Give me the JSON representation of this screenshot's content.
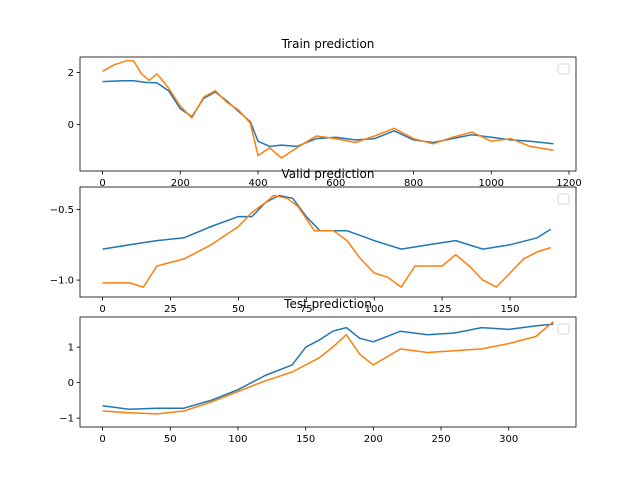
{
  "colors": {
    "actual": "#1f77b4",
    "predicted": "#ff7f0e"
  },
  "chart_data": [
    {
      "type": "line",
      "title": "Train prediction",
      "xlim": [
        -58,
        1218
      ],
      "ylim": [
        -1.8,
        2.6
      ],
      "xticks": [
        0,
        200,
        400,
        600,
        800,
        1000,
        1200
      ],
      "yticks": [
        -2,
        0,
        2
      ],
      "ytick_labels": [
        "",
        "0",
        "2"
      ],
      "grid": false,
      "legend": "top-right (empty)",
      "series": [
        {
          "color": "#1f77b4",
          "x": [
            0,
            50,
            80,
            110,
            140,
            170,
            200,
            230,
            260,
            290,
            320,
            350,
            380,
            400,
            430,
            460,
            500,
            550,
            600,
            650,
            700,
            750,
            800,
            850,
            900,
            950,
            1000,
            1050,
            1100,
            1160
          ],
          "y": [
            1.65,
            1.68,
            1.68,
            1.62,
            1.6,
            1.3,
            0.6,
            0.3,
            1.0,
            1.25,
            0.9,
            0.5,
            0.1,
            -0.65,
            -0.85,
            -0.8,
            -0.85,
            -0.55,
            -0.5,
            -0.6,
            -0.55,
            -0.25,
            -0.6,
            -0.7,
            -0.55,
            -0.4,
            -0.5,
            -0.6,
            -0.65,
            -0.75
          ]
        },
        {
          "color": "#ff7f0e",
          "x": [
            0,
            30,
            60,
            80,
            100,
            120,
            140,
            170,
            200,
            230,
            260,
            290,
            320,
            350,
            380,
            400,
            430,
            460,
            500,
            550,
            600,
            650,
            700,
            750,
            800,
            850,
            900,
            950,
            1000,
            1050,
            1100,
            1160
          ],
          "y": [
            2.05,
            2.3,
            2.45,
            2.45,
            1.95,
            1.7,
            1.95,
            1.4,
            0.7,
            0.25,
            1.05,
            1.3,
            0.85,
            0.55,
            0.05,
            -1.2,
            -0.9,
            -1.3,
            -0.9,
            -0.45,
            -0.55,
            -0.7,
            -0.45,
            -0.15,
            -0.55,
            -0.75,
            -0.5,
            -0.3,
            -0.65,
            -0.55,
            -0.85,
            -1.0
          ]
        }
      ]
    },
    {
      "type": "line",
      "title": "Valid prediction",
      "xlim": [
        -8.3,
        174.3
      ],
      "ylim": [
        -1.12,
        -0.34
      ],
      "xticks": [
        0,
        25,
        50,
        75,
        100,
        125,
        150
      ],
      "yticks": [
        -1.0,
        -0.5
      ],
      "ytick_labels": [
        "−1.0",
        "−0.5"
      ],
      "grid": false,
      "legend": "top-right (empty)",
      "series": [
        {
          "color": "#1f77b4",
          "x": [
            0,
            10,
            20,
            30,
            40,
            50,
            55,
            60,
            65,
            70,
            75,
            80,
            90,
            100,
            110,
            120,
            130,
            140,
            150,
            160,
            165
          ],
          "y": [
            -0.78,
            -0.75,
            -0.72,
            -0.7,
            -0.62,
            -0.55,
            -0.55,
            -0.45,
            -0.4,
            -0.42,
            -0.55,
            -0.65,
            -0.65,
            -0.72,
            -0.78,
            -0.75,
            -0.72,
            -0.78,
            -0.75,
            -0.7,
            -0.64
          ]
        },
        {
          "color": "#ff7f0e",
          "x": [
            0,
            10,
            15,
            20,
            30,
            40,
            50,
            55,
            60,
            63,
            68,
            72,
            78,
            85,
            90,
            95,
            100,
            105,
            110,
            115,
            120,
            125,
            130,
            135,
            140,
            145,
            150,
            155,
            160,
            165
          ],
          "y": [
            -1.02,
            -1.02,
            -1.05,
            -0.9,
            -0.85,
            -0.75,
            -0.62,
            -0.52,
            -0.45,
            -0.4,
            -0.42,
            -0.48,
            -0.65,
            -0.65,
            -0.72,
            -0.85,
            -0.95,
            -0.98,
            -1.05,
            -0.9,
            -0.9,
            -0.9,
            -0.82,
            -0.9,
            -1.0,
            -1.05,
            -0.95,
            -0.85,
            -0.8,
            -0.77
          ]
        }
      ]
    },
    {
      "type": "line",
      "title": "Test prediction",
      "xlim": [
        -16.7,
        349.7
      ],
      "ylim": [
        -1.25,
        1.85
      ],
      "xticks": [
        0,
        50,
        100,
        150,
        200,
        250,
        300
      ],
      "yticks": [
        -1,
        0,
        1
      ],
      "ytick_labels": [
        "−1",
        "0",
        "1"
      ],
      "grid": false,
      "legend": "top-right (empty)",
      "series": [
        {
          "color": "#1f77b4",
          "x": [
            0,
            20,
            40,
            60,
            80,
            100,
            120,
            140,
            150,
            160,
            170,
            180,
            190,
            200,
            220,
            240,
            260,
            280,
            300,
            320,
            333
          ],
          "y": [
            -0.65,
            -0.75,
            -0.72,
            -0.72,
            -0.5,
            -0.2,
            0.2,
            0.5,
            1.0,
            1.2,
            1.45,
            1.55,
            1.25,
            1.15,
            1.45,
            1.35,
            1.4,
            1.55,
            1.5,
            1.6,
            1.65
          ]
        },
        {
          "color": "#ff7f0e",
          "x": [
            0,
            20,
            40,
            60,
            80,
            100,
            120,
            140,
            150,
            160,
            170,
            180,
            190,
            200,
            220,
            240,
            260,
            280,
            300,
            320,
            333
          ],
          "y": [
            -0.8,
            -0.85,
            -0.88,
            -0.8,
            -0.55,
            -0.25,
            0.05,
            0.3,
            0.5,
            0.7,
            1.0,
            1.35,
            0.8,
            0.5,
            0.95,
            0.85,
            0.9,
            0.95,
            1.1,
            1.3,
            1.72
          ]
        }
      ]
    }
  ]
}
